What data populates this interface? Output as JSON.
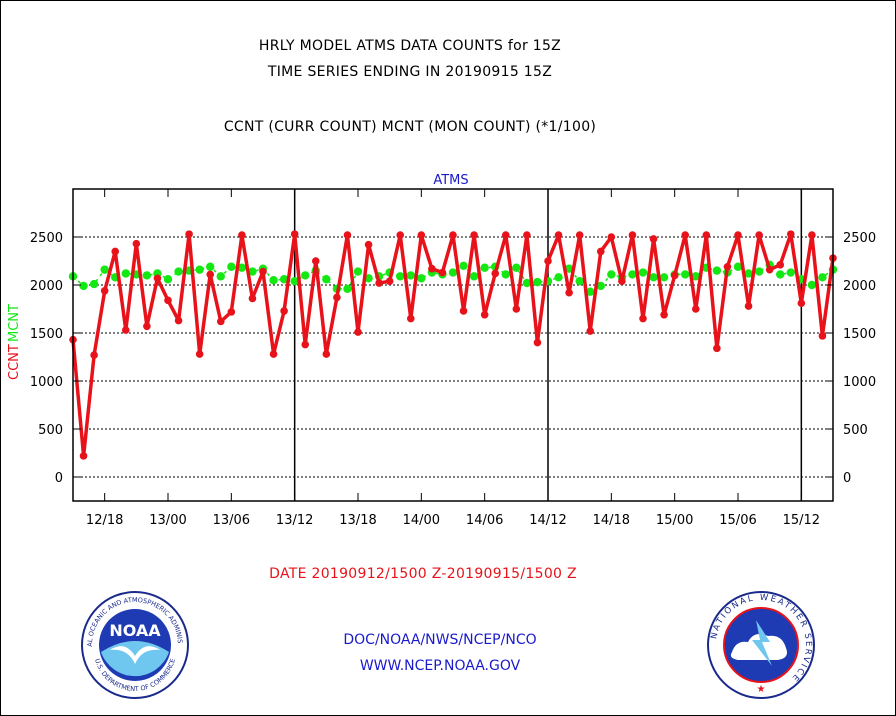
{
  "page": {
    "title_line1": "HRLY MODEL ATMS DATA COUNTS for 15Z",
    "title_line2": "TIME SERIES ENDING IN 20190915 15Z",
    "subtitle": "CCNT (CURR COUNT) MCNT (MON COUNT) (*1/100)",
    "date_range": "DATE 20190912/1500 Z-20190915/1500 Z",
    "footer_line1": "DOC/NOAA/NWS/NCEP/NCO",
    "footer_line2": "WWW.NCEP.NOAA.GOV",
    "noaa_logo_text": "NOAA",
    "noaa_ring_text": "NATIONAL OCEANIC AND ATMOSPHERIC ADMINISTRATION",
    "noaa_ring_text_bottom": "U.S. DEPARTMENT OF COMMERCE",
    "nws_ring_text": "NATIONAL WEATHER SERVICE"
  },
  "colors": {
    "ccnt": "#e8131a",
    "mcnt": "#13e813",
    "text": "#000000",
    "link_blue": "#1a1acd",
    "grid": "#000000"
  },
  "chart_data": {
    "type": "line",
    "plot_label": "ATMS",
    "ylabel_ccnt": "CCNT",
    "ylabel_mcnt": "MCNT",
    "ylim": [
      -250,
      3000
    ],
    "yticks": [
      0,
      500,
      1000,
      1500,
      2000,
      2500
    ],
    "ytick_labels": [
      "0",
      "500",
      "1000",
      "1500",
      "2000",
      "2500"
    ],
    "xlim": [
      0,
      72
    ],
    "xticks": [
      3,
      9,
      15,
      21,
      27,
      33,
      39,
      45,
      51,
      57,
      63,
      69
    ],
    "xtick_labels": [
      "12/18",
      "13/00",
      "13/06",
      "13/12",
      "13/18",
      "14/00",
      "14/06",
      "14/12",
      "14/18",
      "15/00",
      "15/06",
      "15/12"
    ],
    "day_boundaries": [
      21,
      45,
      69
    ],
    "x": [
      0,
      1,
      2,
      3,
      4,
      5,
      6,
      7,
      8,
      9,
      10,
      11,
      12,
      13,
      14,
      15,
      16,
      17,
      18,
      19,
      20,
      21,
      22,
      23,
      24,
      25,
      26,
      27,
      28,
      29,
      30,
      31,
      32,
      33,
      34,
      35,
      36,
      37,
      38,
      39,
      40,
      41,
      42,
      43,
      44,
      45,
      46,
      47,
      48,
      49,
      50,
      51,
      52,
      53,
      54,
      55,
      56,
      57,
      58,
      59,
      60,
      61,
      62,
      63,
      64,
      65,
      66,
      67,
      68,
      69,
      70,
      71,
      72
    ],
    "series": [
      {
        "name": "CCNT",
        "values": [
          1430,
          220,
          1270,
          1940,
          2350,
          1530,
          2430,
          1570,
          2070,
          1840,
          1630,
          2530,
          1280,
          2110,
          1620,
          1720,
          2520,
          1860,
          2140,
          1280,
          1730,
          2530,
          1380,
          2250,
          1280,
          1870,
          2520,
          1510,
          2420,
          2020,
          2040,
          2520,
          1650,
          2520,
          2170,
          2130,
          2520,
          1730,
          2520,
          1690,
          2120,
          2520,
          1750,
          2520,
          1400,
          2250,
          2520,
          1920,
          2520,
          1520,
          2350,
          2500,
          2040,
          2520,
          1650,
          2480,
          1690,
          2100,
          2520,
          1750,
          2520,
          1340,
          2190,
          2520,
          1780,
          2520,
          2160,
          2210,
          2530,
          1810,
          2520,
          1470,
          2280
        ]
      },
      {
        "name": "MCNT",
        "values": [
          2090,
          1990,
          2010,
          2160,
          2080,
          2120,
          2110,
          2100,
          2120,
          2060,
          2140,
          2150,
          2160,
          2190,
          2090,
          2190,
          2180,
          2140,
          2170,
          2050,
          2060,
          2040,
          2100,
          2150,
          2060,
          1960,
          1960,
          2140,
          2070,
          2090,
          2130,
          2090,
          2100,
          2070,
          2130,
          2110,
          2130,
          2200,
          2090,
          2180,
          2190,
          2110,
          2180,
          2020,
          2030,
          2040,
          2080,
          2170,
          2040,
          1930,
          1990,
          2110,
          2080,
          2110,
          2130,
          2080,
          2080,
          2110,
          2110,
          2090,
          2180,
          2150,
          2130,
          2190,
          2120,
          2140,
          2210,
          2110,
          2130,
          2060,
          2000,
          2080,
          2160
        ]
      }
    ]
  }
}
